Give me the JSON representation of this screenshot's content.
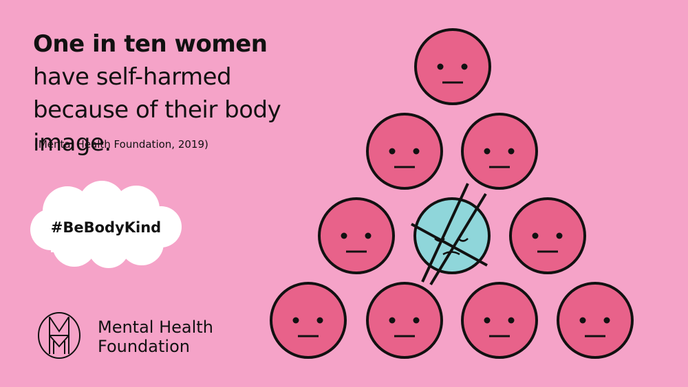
{
  "headline": {
    "bold": "One in ten women",
    "rest": " have self-harmed because of their body image."
  },
  "source": "(Mental Health Foundation, 2019)",
  "hashtag": "#BeBodyKind",
  "logo": {
    "line1": "Mental Health",
    "line2": "Foundation"
  },
  "colors": {
    "background": "#f5a3c8",
    "face": "#e8628a",
    "highlight_face": "#8fd6da",
    "outline": "#111111",
    "cloud": "#ffffff"
  },
  "illustration": {
    "total_faces": 10,
    "crossed_out_faces": 1
  }
}
